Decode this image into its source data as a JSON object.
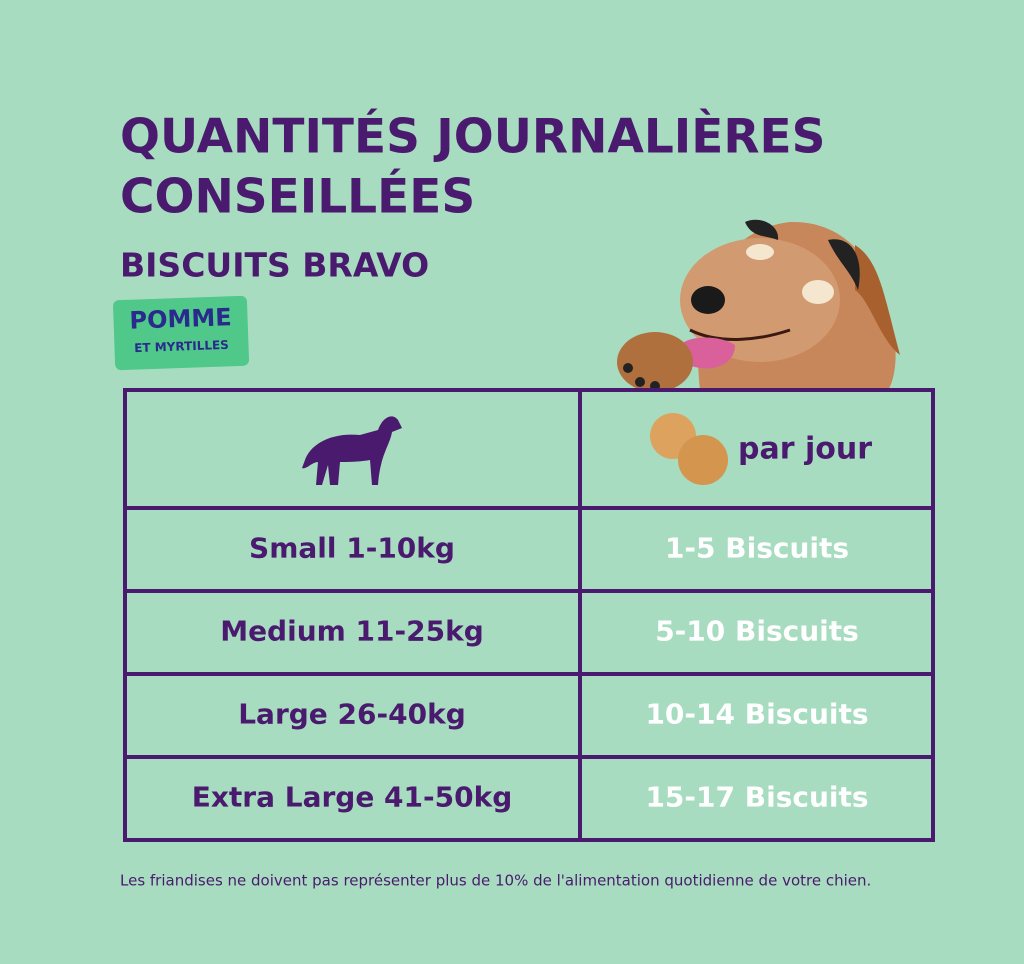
{
  "header": {
    "title_lines": [
      "QUANTITÉS JOURNALIÈRES",
      "CONSEILLÉES"
    ],
    "subtitle": "BISCUITS BRAVO",
    "badge": {
      "line1": "POMME",
      "line2": "ET MYRTILLES"
    }
  },
  "table": {
    "header": "par jour",
    "rows": [
      [
        "Small 1-10kg",
        "1-5 Biscuits"
      ],
      [
        "Medium 11-25kg",
        "5-10 Biscuits"
      ],
      [
        "Large 26-40kg",
        "10-14 Biscuits"
      ],
      [
        "Extra Large 41-50kg",
        "15-17 Biscuits"
      ]
    ]
  },
  "footnote": "Les friandises ne doivent pas représenter plus de 10% de l'alimentation quotidienne de votre chien."
}
